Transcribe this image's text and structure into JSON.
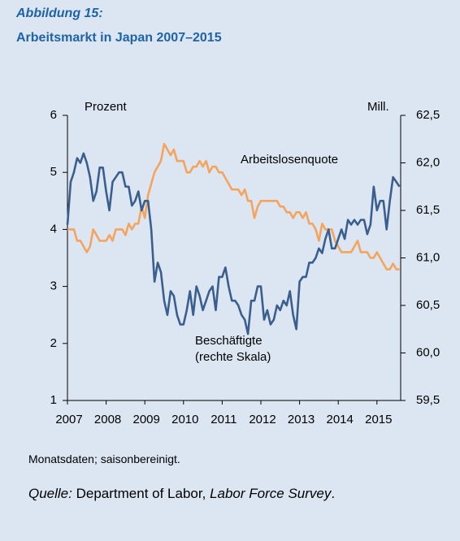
{
  "chart_data": {
    "type": "line",
    "title": "Abbildung 15:",
    "subtitle": "Arbeitsmarkt in Japan 2007–2015",
    "ylabel": "Prozent",
    "y2label": "Mill.",
    "annotation": "(rechte Skala)",
    "note": "Monatsdaten; saisonbereinigt.",
    "source": {
      "label": "Quelle:",
      "publisher": "Department of Labor,",
      "publication": "Labor Force Survey",
      "end": "."
    },
    "categories": [
      "2007",
      null,
      null,
      null,
      null,
      null,
      null,
      null,
      null,
      null,
      null,
      null,
      "2008",
      null,
      null,
      null,
      null,
      null,
      null,
      null,
      null,
      null,
      null,
      null,
      "2009",
      null,
      null,
      null,
      null,
      null,
      null,
      null,
      null,
      null,
      null,
      null,
      "2010",
      null,
      null,
      null,
      null,
      null,
      null,
      null,
      null,
      null,
      null,
      null,
      "2011",
      null,
      null,
      null,
      null,
      null,
      null,
      null,
      null,
      null,
      null,
      null,
      "2012",
      null,
      null,
      null,
      null,
      null,
      null,
      null,
      null,
      null,
      null,
      null,
      "2013",
      null,
      null,
      null,
      null,
      null,
      null,
      null,
      null,
      null,
      null,
      null,
      "2014",
      null,
      null,
      null,
      null,
      null,
      null,
      null,
      null,
      null,
      null,
      null,
      "2015",
      null,
      null,
      null,
      null,
      null,
      null,
      null
    ],
    "series": [
      {
        "name": "Arbeitslosenquote",
        "color": "#f4a45c",
        "values": [
          4.0,
          4.0,
          4.0,
          3.8,
          3.8,
          3.7,
          3.6,
          3.7,
          4.0,
          3.9,
          3.8,
          3.8,
          3.8,
          3.9,
          3.8,
          4.0,
          4.0,
          4.0,
          3.9,
          4.1,
          4.0,
          4.1,
          4.1,
          4.4,
          4.2,
          4.6,
          4.8,
          5.0,
          5.1,
          5.2,
          5.5,
          5.4,
          5.3,
          5.4,
          5.2,
          5.2,
          5.2,
          5.0,
          5.0,
          5.1,
          5.1,
          5.2,
          5.1,
          5.2,
          5.0,
          5.1,
          5.1,
          5.0,
          5.0,
          4.9,
          4.8,
          4.7,
          4.7,
          4.7,
          4.6,
          4.7,
          4.5,
          4.5,
          4.2,
          4.4,
          4.5,
          4.5,
          4.5,
          4.5,
          4.5,
          4.5,
          4.4,
          4.4,
          4.3,
          4.3,
          4.2,
          4.3,
          4.3,
          4.2,
          4.3,
          4.1,
          4.1,
          4.0,
          3.8,
          4.1,
          4.0,
          4.0,
          4.0,
          3.8,
          3.7,
          3.6,
          3.6,
          3.6,
          3.6,
          3.7,
          3.8,
          3.6,
          3.6,
          3.6,
          3.5,
          3.5,
          3.6,
          3.5,
          3.4,
          3.3,
          3.3,
          3.4,
          3.3,
          3.3
        ]
      },
      {
        "name": "Beschäftigte",
        "color": "#3a5f8f",
        "axis": "y2",
        "values": [
          61.35,
          61.8,
          61.9,
          62.05,
          62.0,
          62.1,
          62.0,
          61.85,
          61.6,
          61.7,
          61.95,
          61.95,
          61.7,
          61.5,
          61.8,
          61.85,
          61.9,
          61.9,
          61.75,
          61.75,
          61.55,
          61.6,
          61.7,
          61.5,
          61.6,
          61.6,
          61.3,
          60.75,
          60.95,
          60.85,
          60.55,
          60.4,
          60.65,
          60.6,
          60.4,
          60.3,
          60.3,
          60.45,
          60.65,
          60.4,
          60.7,
          60.6,
          60.45,
          60.55,
          60.65,
          60.7,
          60.45,
          60.8,
          60.8,
          60.9,
          60.7,
          60.55,
          60.55,
          60.5,
          60.4,
          60.35,
          60.2,
          60.55,
          60.55,
          60.7,
          60.7,
          60.35,
          60.45,
          60.3,
          60.35,
          60.5,
          60.45,
          60.55,
          60.5,
          60.65,
          60.4,
          60.25,
          60.75,
          60.8,
          60.8,
          60.95,
          60.95,
          61.0,
          61.1,
          61.05,
          61.2,
          61.3,
          61.1,
          61.1,
          61.2,
          61.3,
          61.2,
          61.4,
          61.35,
          61.4,
          61.35,
          61.4,
          61.4,
          61.25,
          61.35,
          61.75,
          61.5,
          61.6,
          61.6,
          61.3,
          61.6,
          61.85,
          61.8,
          61.75
        ]
      }
    ],
    "ylim": [
      1,
      6
    ],
    "yticks": [
      1,
      2,
      3,
      4,
      5,
      6
    ],
    "y2lim": [
      59.5,
      62.5
    ],
    "y2ticks": [
      {
        "value": 59.5,
        "label": "59,5"
      },
      {
        "value": 60,
        "label": "60,0"
      },
      {
        "value": 60.5,
        "label": "60,5"
      },
      {
        "value": 61,
        "label": "61,0"
      },
      {
        "value": 61.5,
        "label": "61,5"
      },
      {
        "value": 62,
        "label": "62,0"
      },
      {
        "value": 62.5,
        "label": "62,5"
      }
    ],
    "grid": false
  }
}
